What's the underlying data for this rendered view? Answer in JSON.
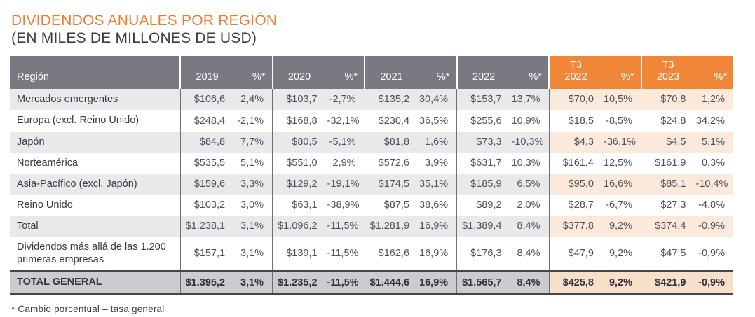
{
  "header": {
    "title": "DIVIDENDOS ANUALES POR REGIÓN",
    "subtitle": "(EN MILES DE MILLONES DE USD)"
  },
  "footnote": "* Cambio porcentual – tasa general",
  "colors": {
    "accent_orange": "#EF7B2E",
    "header_gray": "#7A7881",
    "header_orange": "#F08637",
    "stripe_gray": "#E9E8EB",
    "stripe_peach": "#FBE9DC",
    "total_gray": "#CCCBD1",
    "total_peach": "#F7E0CA"
  },
  "chart_data": {
    "type": "table",
    "title": "DIVIDENDOS ANUALES POR REGIÓN (EN MILES DE MILLONES DE USD)",
    "region_header": "Región",
    "pct_header": "%*",
    "groups": [
      {
        "line1": "",
        "line2": "2019",
        "highlight": false
      },
      {
        "line1": "",
        "line2": "2020",
        "highlight": false
      },
      {
        "line1": "",
        "line2": "2021",
        "highlight": false
      },
      {
        "line1": "",
        "line2": "2022",
        "highlight": false
      },
      {
        "line1": "T3",
        "line2": "2022",
        "highlight": true
      },
      {
        "line1": "T3",
        "line2": "2023",
        "highlight": true
      }
    ],
    "rows": [
      {
        "region": "Mercados emergentes",
        "values": [
          "$106,6",
          "2,4%",
          "$103,7",
          "-2,7%",
          "$135,2",
          "30,4%",
          "$153,7",
          "13,7%",
          "$70,0",
          "10,5%",
          "$70,8",
          "1,2%"
        ]
      },
      {
        "region": "Europa (excl. Reino Unido)",
        "values": [
          "$248,4",
          "-2,1%",
          "$168,8",
          "-32,1%",
          "$230,4",
          "36,5%",
          "$255,6",
          "10,9%",
          "$18,5",
          "-8,5%",
          "$24,8",
          "34,2%"
        ]
      },
      {
        "region": "Japón",
        "values": [
          "$84,8",
          "7,7%",
          "$80,5",
          "-5,1%",
          "$81,8",
          "1,6%",
          "$73,3",
          "-10,3%",
          "$4,3",
          "-36,1%",
          "$4,5",
          "5,1%"
        ]
      },
      {
        "region": "Norteamérica",
        "values": [
          "$535,5",
          "5,1%",
          "$551,0",
          "2,9%",
          "$572,6",
          "3,9%",
          "$631,7",
          "10,3%",
          "$161,4",
          "12,5%",
          "$161,9",
          "0,3%"
        ]
      },
      {
        "region": "Asia-Pacífico (excl. Japón)",
        "values": [
          "$159,6",
          "3,3%",
          "$129,2",
          "-19,1%",
          "$174,5",
          "35,1%",
          "$185,9",
          "6,5%",
          "$95,0",
          "16,6%",
          "$85,1",
          "-10,4%"
        ]
      },
      {
        "region": "Reino Unido",
        "values": [
          "$103,2",
          "3,0%",
          "$63,1",
          "-38,9%",
          "$87,5",
          "38,6%",
          "$89,2",
          "2,0%",
          "$28,7",
          "-6,7%",
          "$27,3",
          "-4,8%"
        ]
      },
      {
        "region": "Total",
        "values": [
          "$1.238,1",
          "3,1%",
          "$1.096,2",
          "-11,5%",
          "$1.281,9",
          "16,9%",
          "$1.389,4",
          "8,4%",
          "$377,8",
          "9,2%",
          "$374,4",
          "-0,9%"
        ]
      },
      {
        "region": "Dividendos más allá de las 1.200 primeras empresas",
        "values": [
          "$157,1",
          "3,1%",
          "$139,1",
          "-11,5%",
          "$162,6",
          "16,9%",
          "$176,3",
          "8,4%",
          "$47,9",
          "9,2%",
          "$47,5",
          "-0,9%"
        ]
      }
    ],
    "total_row": {
      "region": "TOTAL GENERAL",
      "values": [
        "$1.395,2",
        "3,1%",
        "$1.235,2",
        "-11,5%",
        "$1.444,6",
        "16,9%",
        "$1.565,7",
        "8,4%",
        "$425,8",
        "9,2%",
        "$421,9",
        "-0,9%"
      ]
    }
  }
}
